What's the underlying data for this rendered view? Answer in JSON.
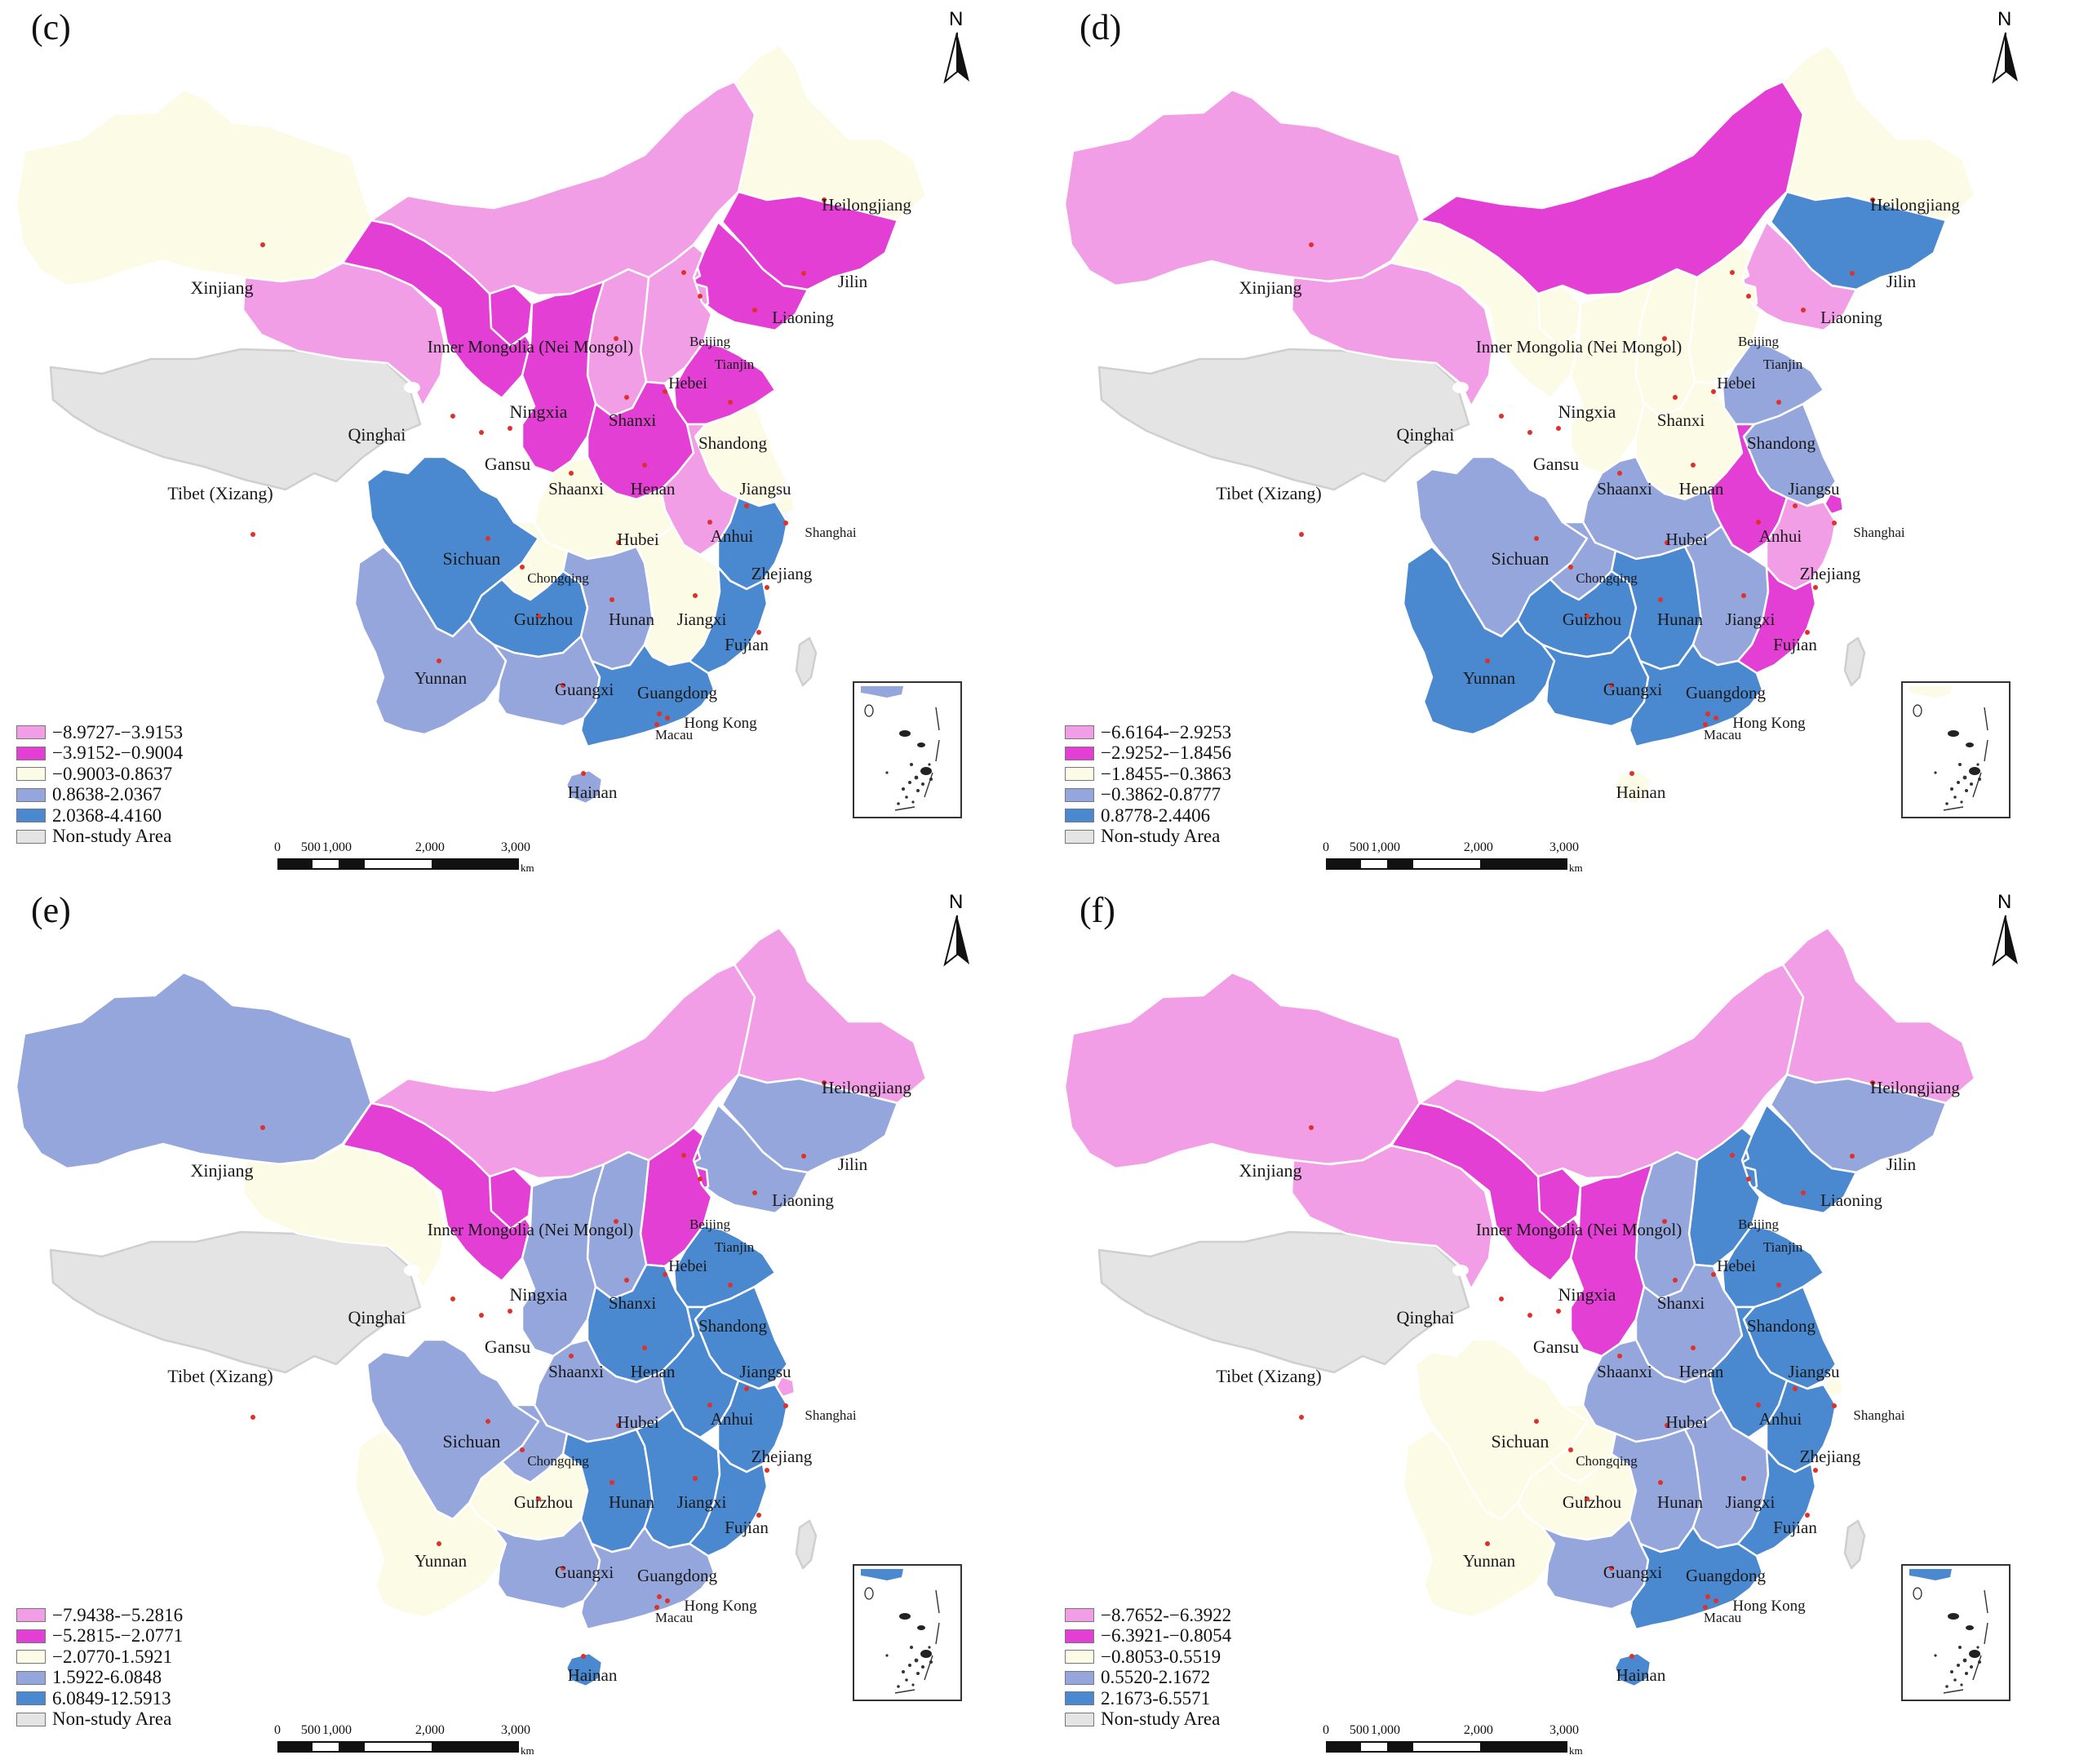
{
  "non_study_label": "Non-study Area",
  "north_label": "N",
  "scale": {
    "ticks": [
      "0",
      "500",
      "1,000",
      "2,000",
      "3,000"
    ],
    "unit": "km"
  },
  "colors": {
    "class1": "#f29ee6",
    "class2": "#e43fd4",
    "class3": "#fbfbe6",
    "class4": "#94a6dc",
    "class5": "#4a88d0",
    "non_study": "#e4e4e4",
    "border": "#ffffff"
  },
  "province_labels": {
    "xinjiang": "Xinjiang",
    "tibet": "Tibet (Xizang)",
    "qinghai": "Qinghai",
    "gansu": "Gansu",
    "ningxia": "Ningxia",
    "inner_mongolia": "Inner Mongolia (Nei Mongol)",
    "heilongjiang": "Heilongjiang",
    "jilin": "Jilin",
    "liaoning": "Liaoning",
    "beijing": "Beijing",
    "tianjin": "Tianjin",
    "hebei": "Hebei",
    "shanxi": "Shanxi",
    "shandong": "Shandong",
    "shaanxi": "Shaanxi",
    "henan": "Henan",
    "jiangsu": "Jiangsu",
    "shanghai": "Shanghai",
    "anhui": "Anhui",
    "hubei": "Hubei",
    "sichuan": "Sichuan",
    "chongqing": "Chongqing",
    "zhejiang": "Zhejiang",
    "guizhou": "Guizhou",
    "hunan": "Hunan",
    "jiangxi": "Jiangxi",
    "fujian": "Fujian",
    "yunnan": "Yunnan",
    "guangxi": "Guangxi",
    "guangdong": "Guangdong",
    "hong_kong": "Hong Kong",
    "macau": "Macau",
    "hainan": "Hainan"
  },
  "panels": [
    {
      "title": "(c)",
      "legend": [
        "−8.9727-−3.9153",
        "−3.9152-−0.9004",
        "−0.9003-0.8637",
        "0.8638-2.0367",
        "2.0368-4.4160"
      ],
      "classes": {
        "xinjiang": 3,
        "tibet": 0,
        "qinghai": 1,
        "gansu": 2,
        "ningxia": 2,
        "inner_mongolia": 1,
        "heilongjiang": 3,
        "jilin": 2,
        "liaoning": 2,
        "beijing": 1,
        "tianjin": 1,
        "hebei": 1,
        "shanxi": 1,
        "shandong": 2,
        "shaanxi": 2,
        "henan": 2,
        "jiangsu": 3,
        "shanghai": 3,
        "anhui": 1,
        "hubei": 3,
        "sichuan": 5,
        "chongqing": 3,
        "zhejiang": 5,
        "guizhou": 5,
        "hunan": 4,
        "jiangxi": 3,
        "fujian": 5,
        "yunnan": 4,
        "guangxi": 4,
        "guangdong": 5,
        "hainan": 4
      }
    },
    {
      "title": "(d)",
      "legend": [
        "−6.6164-−2.9253",
        "−2.9252-−1.8456",
        "−1.8455-−0.3863",
        "−0.3862-0.8777",
        "0.8778-2.4406"
      ],
      "classes": {
        "xinjiang": 1,
        "tibet": 0,
        "qinghai": 1,
        "gansu": 3,
        "ningxia": 3,
        "inner_mongolia": 2,
        "heilongjiang": 3,
        "jilin": 5,
        "liaoning": 1,
        "beijing": 3,
        "tianjin": 3,
        "hebei": 3,
        "shanxi": 3,
        "shandong": 4,
        "shaanxi": 3,
        "henan": 3,
        "jiangsu": 4,
        "shanghai": 2,
        "anhui": 2,
        "hubei": 4,
        "sichuan": 4,
        "chongqing": 4,
        "zhejiang": 1,
        "guizhou": 5,
        "hunan": 5,
        "jiangxi": 4,
        "fujian": 2,
        "yunnan": 5,
        "guangxi": 5,
        "guangdong": 5,
        "hainan": 3
      }
    },
    {
      "title": "(e)",
      "legend": [
        "−7.9438-−5.2816",
        "−5.2815-−2.0771",
        "−2.0770-1.5921",
        "1.5922-6.0848",
        "6.0849-12.5913"
      ],
      "classes": {
        "xinjiang": 4,
        "tibet": 0,
        "qinghai": 3,
        "gansu": 2,
        "ningxia": 2,
        "inner_mongolia": 1,
        "heilongjiang": 1,
        "jilin": 4,
        "liaoning": 4,
        "beijing": 2,
        "tianjin": 2,
        "hebei": 2,
        "shanxi": 4,
        "shandong": 5,
        "shaanxi": 4,
        "henan": 5,
        "jiangsu": 5,
        "shanghai": 1,
        "anhui": 5,
        "hubei": 4,
        "sichuan": 4,
        "chongqing": 4,
        "zhejiang": 5,
        "guizhou": 3,
        "hunan": 5,
        "jiangxi": 5,
        "fujian": 5,
        "yunnan": 3,
        "guangxi": 4,
        "guangdong": 4,
        "hainan": 5
      }
    },
    {
      "title": "(f)",
      "legend": [
        "−8.7652-−6.3922",
        "−6.3921-−0.8054",
        "−0.8053-0.5519",
        "0.5520-2.1672",
        "2.1673-6.5571"
      ],
      "classes": {
        "xinjiang": 1,
        "tibet": 0,
        "qinghai": 1,
        "gansu": 2,
        "ningxia": 2,
        "inner_mongolia": 1,
        "heilongjiang": 1,
        "jilin": 4,
        "liaoning": 5,
        "beijing": 5,
        "tianjin": 5,
        "hebei": 5,
        "shanxi": 4,
        "shandong": 5,
        "shaanxi": 2,
        "henan": 4,
        "jiangsu": 5,
        "shanghai": 3,
        "anhui": 5,
        "hubei": 4,
        "sichuan": 3,
        "chongqing": 3,
        "zhejiang": 5,
        "guizhou": 3,
        "hunan": 4,
        "jiangxi": 4,
        "fujian": 5,
        "yunnan": 3,
        "guangxi": 4,
        "guangdong": 5,
        "hainan": 5
      }
    }
  ]
}
